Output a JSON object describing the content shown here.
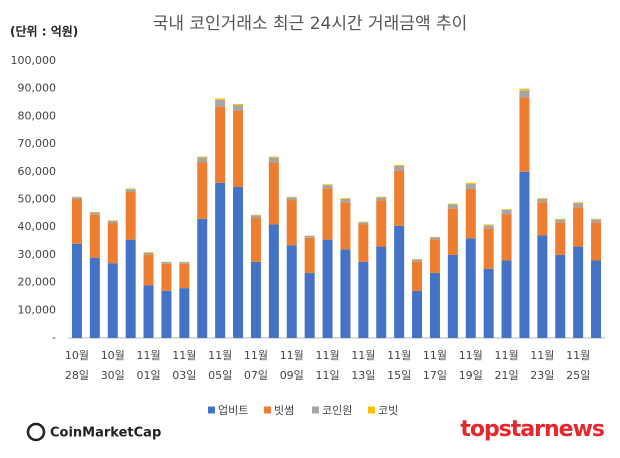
{
  "chart_data": {
    "type": "stacked-bar",
    "title": "국내 코인거래소 최근 24시간 거래금액 추이",
    "unit_label": "(단위 : 억원)",
    "categories": [
      "10월 28일",
      null,
      "10월 30일",
      null,
      "11월 01일",
      null,
      "11월 03일",
      null,
      "11월 05일",
      null,
      "11월 07일",
      null,
      "11월 09일",
      null,
      "11월 11일",
      null,
      "11월 13일",
      null,
      "11월 15일",
      null,
      "11월 17일",
      null,
      "11월 19일",
      null,
      "11월 21일",
      null,
      "11월 23일",
      null,
      "11월 25일",
      null
    ],
    "series": [
      {
        "name": "업비트",
        "color": "#4472c4",
        "values": [
          34000,
          29000,
          27000,
          35500,
          19000,
          17000,
          18000,
          43000,
          56000,
          54500,
          27500,
          41000,
          33500,
          23500,
          35500,
          32000,
          27500,
          33000,
          40500,
          17000,
          23500,
          30000,
          36000,
          25000,
          28000,
          60000,
          37000,
          30000,
          33000,
          28000
        ]
      },
      {
        "name": "빗썸",
        "color": "#ed7d31",
        "values": [
          16000,
          15500,
          14500,
          17200,
          11100,
          9800,
          8800,
          20500,
          27500,
          27600,
          15800,
          22400,
          16300,
          12700,
          18500,
          17000,
          13500,
          16700,
          19800,
          10700,
          12100,
          16700,
          17800,
          14500,
          16700,
          26900,
          12000,
          11800,
          14200,
          13800
        ]
      },
      {
        "name": "코인원",
        "color": "#a5a5a5",
        "values": [
          800,
          800,
          800,
          1000,
          700,
          600,
          600,
          1700,
          2500,
          2000,
          1000,
          1800,
          1000,
          700,
          1200,
          1200,
          800,
          1000,
          1800,
          700,
          700,
          1500,
          1800,
          1200,
          1500,
          2500,
          1200,
          1000,
          1500,
          1000
        ]
      },
      {
        "name": "코빗",
        "color": "#ffc000",
        "values": [
          200,
          200,
          200,
          300,
          200,
          100,
          100,
          300,
          500,
          400,
          200,
          300,
          200,
          100,
          300,
          300,
          200,
          300,
          400,
          100,
          200,
          300,
          400,
          300,
          300,
          600,
          300,
          200,
          300,
          200
        ]
      }
    ],
    "ylim": [
      0,
      100000
    ],
    "yticks": [
      {
        "value": 0,
        "label": "-"
      },
      {
        "value": 10000,
        "label": "10,000"
      },
      {
        "value": 20000,
        "label": "20,000"
      },
      {
        "value": 30000,
        "label": "30,000"
      },
      {
        "value": 40000,
        "label": "40,000"
      },
      {
        "value": 50000,
        "label": "50,000"
      },
      {
        "value": 60000,
        "label": "60,000"
      },
      {
        "value": 70000,
        "label": "70,000"
      },
      {
        "value": 80000,
        "label": "80,000"
      },
      {
        "value": 90000,
        "label": "90,000"
      },
      {
        "value": 100000,
        "label": "100,000"
      }
    ],
    "grid": false,
    "legend": "bottom"
  },
  "source_logo": "CoinMarketCap",
  "watermark": "topstarnews"
}
